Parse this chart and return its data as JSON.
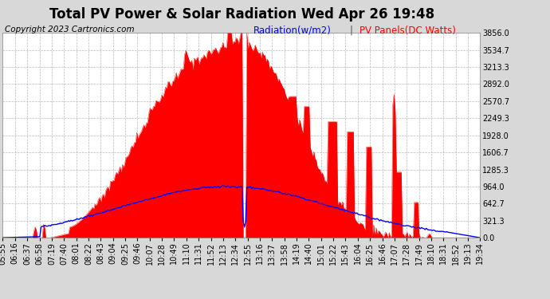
{
  "title": "Total PV Power & Solar Radiation Wed Apr 26 19:48",
  "copyright_text": "Copyright 2023 Cartronics.com",
  "legend_radiation": "Radiation(w/m2)",
  "legend_pv": "PV Panels(DC Watts)",
  "background_color": "#d8d8d8",
  "plot_bg_color": "#ffffff",
  "grid_color": "#aaaaaa",
  "pv_fill_color": "#ff0000",
  "radiation_line_color": "#0000ff",
  "yticks": [
    0.0,
    321.3,
    642.7,
    964.0,
    1285.3,
    1606.7,
    1928.0,
    2249.3,
    2570.7,
    2892.0,
    3213.3,
    3534.7,
    3856.0
  ],
  "ymax": 3856.0,
  "x_labels": [
    "05:55",
    "06:16",
    "06:37",
    "06:58",
    "07:19",
    "07:40",
    "08:01",
    "08:22",
    "08:43",
    "09:04",
    "09:25",
    "09:46",
    "10:07",
    "10:28",
    "10:49",
    "11:10",
    "11:31",
    "11:52",
    "12:13",
    "12:34",
    "12:55",
    "13:16",
    "13:37",
    "13:58",
    "14:19",
    "14:40",
    "15:01",
    "15:22",
    "15:43",
    "16:04",
    "16:25",
    "16:46",
    "17:07",
    "17:28",
    "17:49",
    "18:10",
    "18:31",
    "18:52",
    "19:13",
    "19:34"
  ],
  "title_fontsize": 12,
  "tick_fontsize": 7,
  "copyright_fontsize": 7.5,
  "legend_fontsize": 8.5
}
